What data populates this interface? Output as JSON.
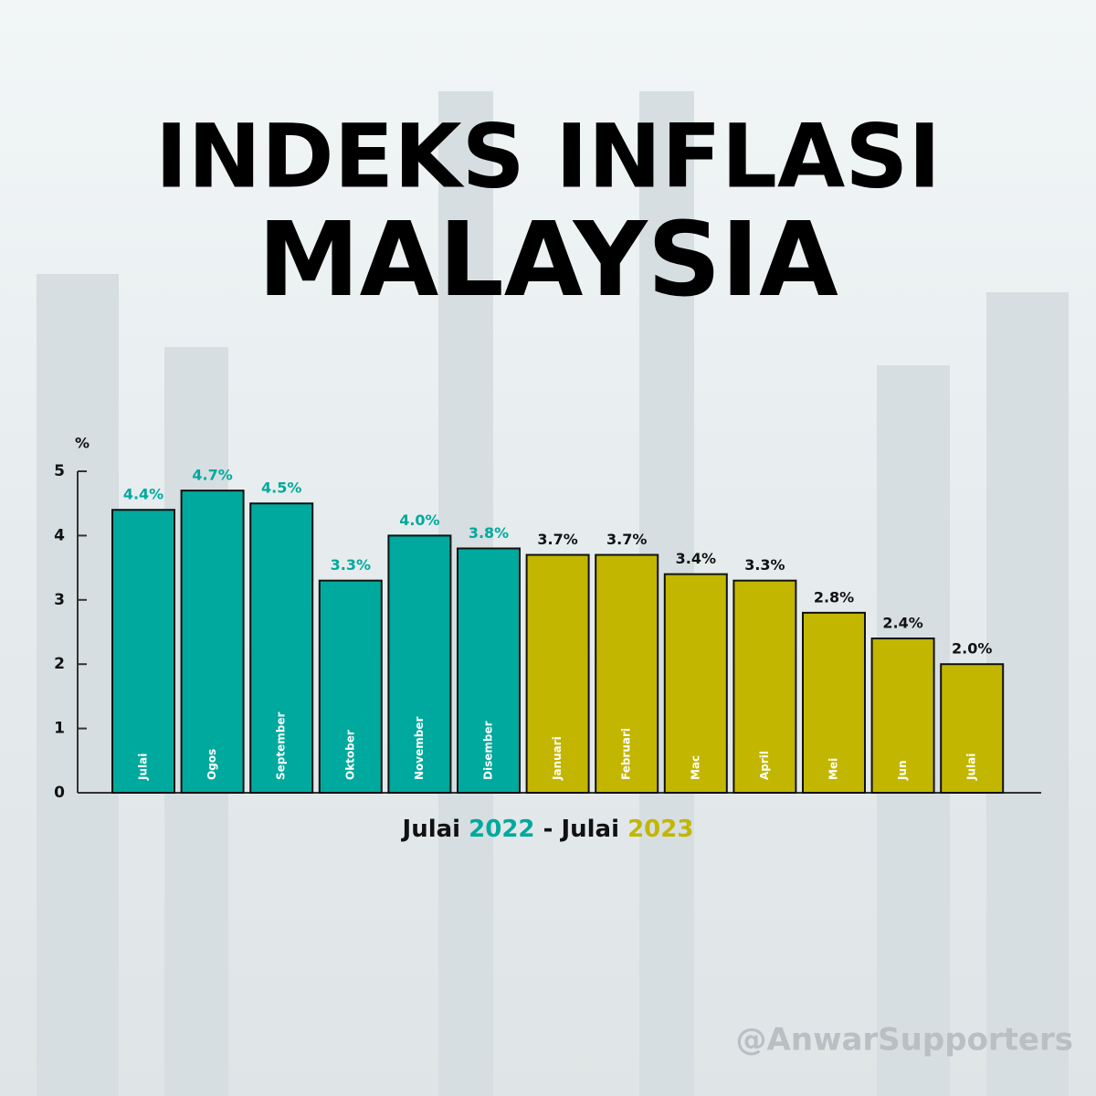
{
  "chart_data": {
    "type": "bar",
    "title": [
      "INDEKS INFLASI",
      "MALAYSIA"
    ],
    "y_label": "%",
    "categories": [
      "Julai",
      "Ogos",
      "September",
      "Oktober",
      "November",
      "Disember",
      "Januari",
      "Februari",
      "Mac",
      "April",
      "Mei",
      "Jun",
      "Julai"
    ],
    "values": [
      4.4,
      4.7,
      4.5,
      3.3,
      4.0,
      3.8,
      3.7,
      3.7,
      3.4,
      3.3,
      2.8,
      2.4,
      2.0
    ],
    "value_labels": [
      "4.4%",
      "4.7%",
      "4.5%",
      "3.3%",
      "4.0%",
      "3.8%",
      "3.7%",
      "3.7%",
      "3.4%",
      "3.3%",
      "2.8%",
      "2.4%",
      "2.0%"
    ],
    "colors": [
      "#00a99d",
      "#00a99d",
      "#00a99d",
      "#00a99d",
      "#00a99d",
      "#00a99d",
      "#c2b600",
      "#c2b600",
      "#c2b600",
      "#c2b600",
      "#c2b600",
      "#c2b600",
      "#c2b600"
    ],
    "value_label_colors": [
      "#00a99d",
      "#00a99d",
      "#00a99d",
      "#00a99d",
      "#00a99d",
      "#00a99d",
      "#111111",
      "#111111",
      "#111111",
      "#111111",
      "#111111",
      "#111111",
      "#111111"
    ],
    "ylim": [
      0,
      5
    ],
    "yticks": [
      0,
      1,
      2,
      3,
      4,
      5
    ],
    "caption": {
      "start_month": "Julai",
      "start_year": "2022",
      "separator": "-",
      "end_month": "Julai",
      "end_year": "2023"
    },
    "watermark": "@AnwarSupporters"
  }
}
